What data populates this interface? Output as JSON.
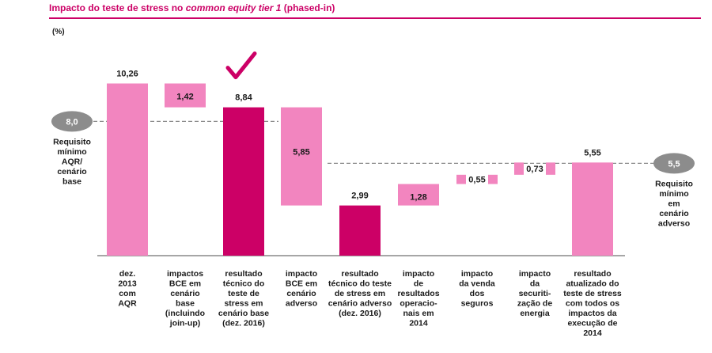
{
  "header": {
    "title_prefix": "Impacto do teste de stress no ",
    "title_italic": "common equity tier 1",
    "title_suffix": " (phased-in)",
    "unit": "(%)"
  },
  "chart_data": {
    "type": "bar",
    "subtype": "waterfall",
    "title": "Impacto do teste de stress no common equity tier 1 (phased-in)",
    "ylabel": "(%)",
    "ylim": [
      0,
      10.5
    ],
    "grid": false,
    "colors": {
      "light": "#f285bf",
      "dark": "#cc0066",
      "reference": "#8c8c8c",
      "title": "#cc0066"
    },
    "bars": [
      {
        "category": [
          "dez.",
          "2013",
          "com",
          "AQR"
        ],
        "value": 10.26,
        "label": "10,26",
        "kind": "total",
        "color": "light",
        "base": 0
      },
      {
        "category": [
          "impactos",
          "BCE em",
          "cenário",
          "base",
          "(incluindo",
          "join-up)"
        ],
        "value": 1.42,
        "label": "1,42",
        "kind": "delta",
        "color": "light",
        "base": 8.84
      },
      {
        "category": [
          "resultado",
          "técnico do",
          "teste de",
          "stress em",
          "cenário base",
          "(dez. 2016)"
        ],
        "value": 8.84,
        "label": "8,84",
        "kind": "total",
        "color": "dark",
        "base": 0,
        "checkmark": true
      },
      {
        "category": [
          "impacto",
          "BCE em",
          "cenário",
          "adverso"
        ],
        "value": 5.85,
        "label": "5,85",
        "kind": "delta",
        "color": "light",
        "base": 2.99
      },
      {
        "category": [
          "resultado",
          "técnico do teste",
          "de stress em",
          "cenário adverso",
          "(dez. 2016)"
        ],
        "value": 2.99,
        "label": "2,99",
        "kind": "total",
        "color": "dark",
        "base": 0
      },
      {
        "category": [
          "impacto",
          "de",
          "resultados",
          "operacio-",
          "nais em",
          "2014"
        ],
        "value": 1.28,
        "label": "1,28",
        "kind": "delta",
        "color": "light",
        "base": 2.99
      },
      {
        "category": [
          "impacto",
          "da venda",
          "dos",
          "seguros"
        ],
        "value": 0.55,
        "label": "0,55",
        "kind": "delta",
        "color": "light",
        "base": 4.27
      },
      {
        "category": [
          "impacto",
          "da",
          "securiti-",
          "zação de",
          "energia"
        ],
        "value": 0.73,
        "label": "0,73",
        "kind": "delta",
        "color": "light",
        "base": 4.82
      },
      {
        "category": [
          "resultado",
          "atualizado do",
          "teste de stress",
          "com todos os",
          "impactos da",
          "execução de",
          "2014"
        ],
        "value": 5.55,
        "label": "5,55",
        "kind": "total",
        "color": "light",
        "base": 0
      }
    ],
    "reference_lines": [
      {
        "value": 8.0,
        "label": "8,0",
        "caption": [
          "Requisito",
          "mínimo",
          "AQR/",
          "cenário",
          "base"
        ],
        "side": "left"
      },
      {
        "value": 5.5,
        "label": "5,5",
        "caption": [
          "Requisito",
          "mínimo",
          "em",
          "cenário",
          "adverso"
        ],
        "side": "right"
      }
    ]
  }
}
